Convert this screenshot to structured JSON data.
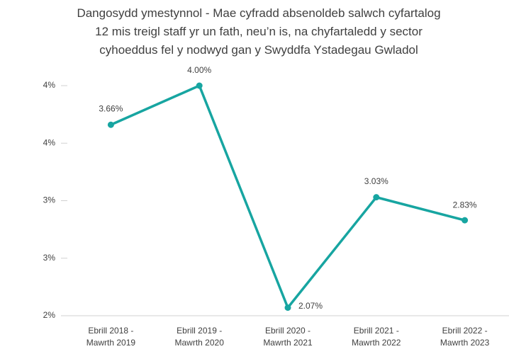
{
  "chart_data": {
    "type": "line",
    "title": "Dangosydd ymestynnol - Mae cyfradd absenoldeb salwch cyfartalog\n12 mis treigl staff yr un fath, neu’n is, na chyfartaledd y sector\ncyhoeddus fel y nodwyd gan y Swyddfa Ystadegau Gwladol",
    "categories": [
      [
        "Ebrill 2018 -",
        "Mawrth 2019"
      ],
      [
        "Ebrill 2019 -",
        "Mawrth 2020"
      ],
      [
        "Ebrill 2020 -",
        "Mawrth 2021"
      ],
      [
        "Ebrill 2021 -",
        "Mawrth 2022"
      ],
      [
        "Ebrill 2022 -",
        "Mawrth 2023"
      ]
    ],
    "series": [
      {
        "color": "#17a5a1",
        "values": [
          3.66,
          4.0,
          2.07,
          3.03,
          2.83
        ],
        "value_labels": [
          "3.66%",
          "4.00%",
          "2.07%",
          "3.03%",
          "2.83%"
        ]
      }
    ],
    "ylim": [
      2,
      4
    ],
    "yticks": [
      {
        "value": 2,
        "label": "2%"
      },
      {
        "value": 2.5,
        "label": "3%"
      },
      {
        "value": 3,
        "label": "3%"
      },
      {
        "value": 3.5,
        "label": "4%"
      },
      {
        "value": 4,
        "label": "4%"
      }
    ]
  }
}
